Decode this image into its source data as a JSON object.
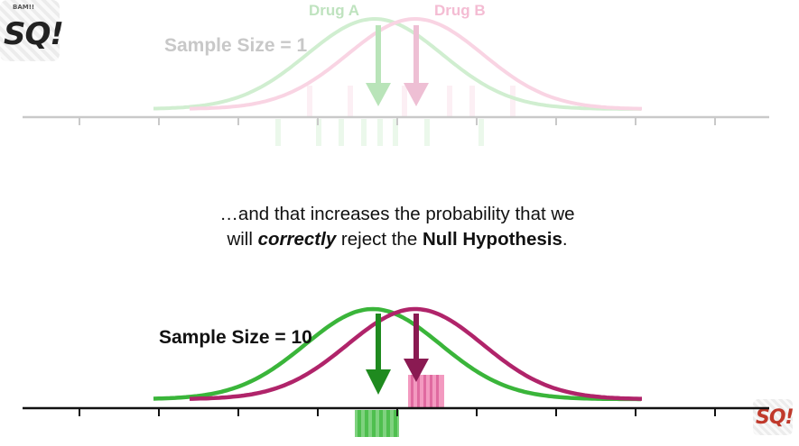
{
  "top_panel": {
    "sample_size_label": "Sample Size = 1",
    "legend_a": "Drug A",
    "legend_b": "Drug B"
  },
  "message": {
    "line1": "…and that increases the probability that we",
    "line2_pre": "will ",
    "line2_em": "correctly",
    "line2_mid": " reject the ",
    "line2_strong": "Null Hypothesis",
    "line2_post": "."
  },
  "bottom_panel": {
    "sample_size_label": "Sample Size = 10"
  },
  "logo_text": "StatQuest",
  "colors": {
    "drug_a": "#3ab53a",
    "drug_a_dark": "#1f8a1f",
    "drug_b": "#b0246a",
    "drug_b_light": "#e87aa8",
    "axis": "#222222",
    "faded_axis": "#bbbbbb"
  }
}
